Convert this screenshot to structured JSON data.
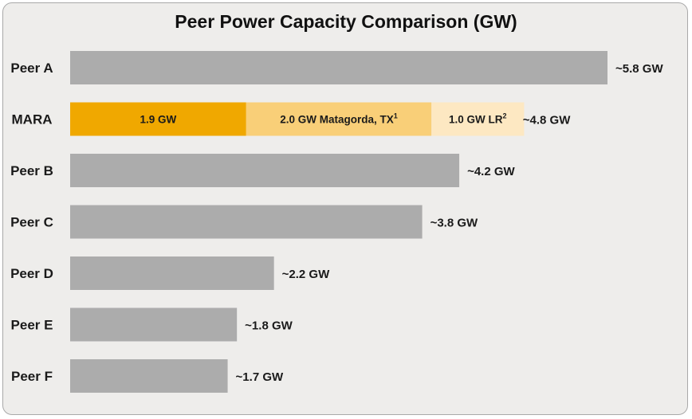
{
  "chart_data": {
    "type": "bar",
    "orientation": "horizontal",
    "title": "Peer Power Capacity Comparison (GW)",
    "xlabel": "",
    "ylabel": "",
    "xlim": [
      0,
      5.8
    ],
    "grid": false,
    "categories": [
      "Peer A",
      "MARA",
      "Peer B",
      "Peer C",
      "Peer D",
      "Peer E",
      "Peer F"
    ],
    "values": [
      5.8,
      4.8,
      4.2,
      3.8,
      2.2,
      1.8,
      1.7
    ],
    "value_labels": [
      "~5.8 GW",
      "~4.8 GW",
      "~4.2 GW",
      "~3.8 GW",
      "~2.2 GW",
      "~1.8 GW",
      "~1.7 GW"
    ],
    "stacked_category": {
      "name": "MARA",
      "segments": [
        {
          "value": 1.9,
          "label": "1.9 GW",
          "sup": "",
          "color": "#f0a800"
        },
        {
          "value": 2.0,
          "label": "2.0 GW Matagorda, TX",
          "sup": "1",
          "color": "#f9cf78"
        },
        {
          "value": 1.0,
          "label": "1.0 GW LR",
          "sup": "2",
          "color": "#fde8c2"
        }
      ]
    },
    "peer_color": "#acacac"
  }
}
